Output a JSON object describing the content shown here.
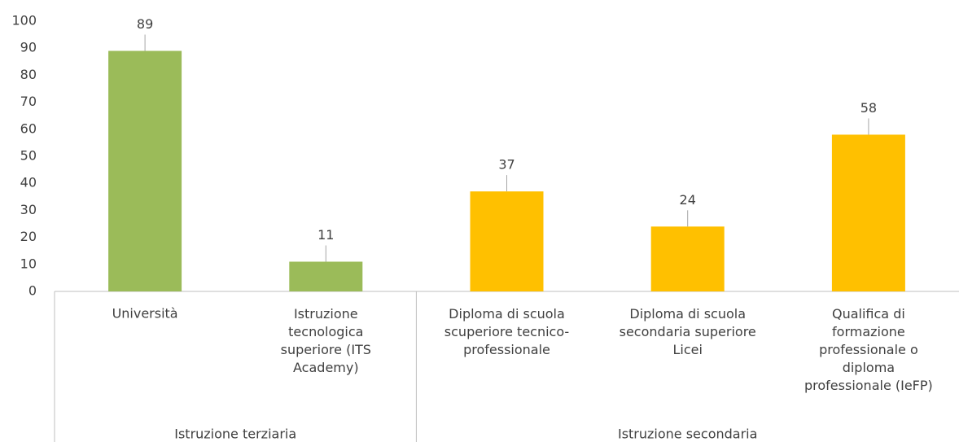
{
  "chart_data": {
    "type": "bar",
    "categories": [
      "Università",
      "Istruzione\ntecnologica\nsuperiore (ITS\nAcademy)",
      "Diploma di scuola\nscuperiore tecnico-\nprofessionale",
      "Diploma di scuola\nsecondaria superiore\nLicei",
      "Qualifica di\nformazione\nprofessionale o\ndiploma\nprofessionale (IeFP)"
    ],
    "groups": [
      "Istruzione terziaria",
      "Istruzione terziaria",
      "Istruzione secondaria",
      "Istruzione secondaria",
      "Istruzione secondaria"
    ],
    "values": [
      89,
      11,
      37,
      24,
      58
    ],
    "colors": [
      "#9bbb59",
      "#9bbb59",
      "#ffc000",
      "#ffc000",
      "#ffc000"
    ],
    "ylim": [
      0,
      100
    ],
    "yticks": [
      0,
      10,
      20,
      30,
      40,
      50,
      60,
      70,
      80,
      90,
      100
    ],
    "grid": false
  }
}
